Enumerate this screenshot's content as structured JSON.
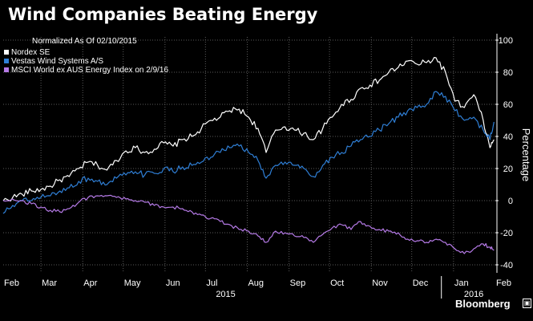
{
  "header": {
    "title": "Wind Companies Beating Energy"
  },
  "footer": {
    "brand": "Bloomberg",
    "brand_mark": "▣"
  },
  "chart_data": {
    "type": "line",
    "title": "Wind Companies Beating Energy",
    "subtitle": "Normalized As Of 02/10/2015",
    "xlabel": "",
    "ylabel": "Percentage",
    "ylim": [
      -45,
      102
    ],
    "yticks": [
      -40,
      -20,
      0,
      20,
      40,
      60,
      80,
      100
    ],
    "xlim": [
      "2015-02-10",
      "2016-02-10"
    ],
    "xticks": [
      {
        "date": "2015-02-10",
        "label": "Feb"
      },
      {
        "date": "2015-03-10",
        "label": "Mar"
      },
      {
        "date": "2015-04-10",
        "label": "Apr"
      },
      {
        "date": "2015-05-10",
        "label": "May"
      },
      {
        "date": "2015-06-10",
        "label": "Jun"
      },
      {
        "date": "2015-07-10",
        "label": "Jul"
      },
      {
        "date": "2015-08-10",
        "label": "Aug"
      },
      {
        "date": "2015-09-10",
        "label": "Sep"
      },
      {
        "date": "2015-10-10",
        "label": "Oct"
      },
      {
        "date": "2015-11-10",
        "label": "Nov"
      },
      {
        "date": "2015-12-10",
        "label": "Dec"
      },
      {
        "date": "2016-01-10",
        "label": "Jan"
      },
      {
        "date": "2016-02-10",
        "label": "Feb"
      }
    ],
    "year_labels": [
      {
        "date": "2015-07-25",
        "label": "2015"
      },
      {
        "date": "2016-01-25",
        "label": "2016"
      }
    ],
    "grid": true,
    "legend_position": "top-left",
    "colors": {
      "background": "#000000",
      "grid": "#5a5a5a",
      "axis_text": "#ffffff"
    },
    "series": [
      {
        "name": "Nordex SE",
        "color": "#ffffff",
        "points": [
          [
            "2015-02-10",
            0
          ],
          [
            "2015-02-17",
            2
          ],
          [
            "2015-02-24",
            4
          ],
          [
            "2015-03-03",
            6
          ],
          [
            "2015-03-10",
            7
          ],
          [
            "2015-03-17",
            9
          ],
          [
            "2015-03-24",
            13
          ],
          [
            "2015-03-31",
            15
          ],
          [
            "2015-04-07",
            20
          ],
          [
            "2015-04-14",
            24
          ],
          [
            "2015-04-21",
            22
          ],
          [
            "2015-04-28",
            19
          ],
          [
            "2015-05-05",
            25
          ],
          [
            "2015-05-12",
            31
          ],
          [
            "2015-05-19",
            33
          ],
          [
            "2015-05-26",
            30
          ],
          [
            "2015-06-02",
            32
          ],
          [
            "2015-06-09",
            36
          ],
          [
            "2015-06-16",
            34
          ],
          [
            "2015-06-23",
            38
          ],
          [
            "2015-06-30",
            40
          ],
          [
            "2015-07-07",
            45
          ],
          [
            "2015-07-14",
            50
          ],
          [
            "2015-07-21",
            52
          ],
          [
            "2015-07-28",
            56
          ],
          [
            "2015-08-04",
            57
          ],
          [
            "2015-08-11",
            52
          ],
          [
            "2015-08-18",
            45
          ],
          [
            "2015-08-24",
            30
          ],
          [
            "2015-08-31",
            44
          ],
          [
            "2015-09-07",
            46
          ],
          [
            "2015-09-14",
            44
          ],
          [
            "2015-09-21",
            42
          ],
          [
            "2015-09-28",
            38
          ],
          [
            "2015-10-05",
            45
          ],
          [
            "2015-10-12",
            52
          ],
          [
            "2015-10-19",
            60
          ],
          [
            "2015-10-26",
            63
          ],
          [
            "2015-11-02",
            70
          ],
          [
            "2015-11-09",
            72
          ],
          [
            "2015-11-16",
            75
          ],
          [
            "2015-11-23",
            80
          ],
          [
            "2015-11-30",
            83
          ],
          [
            "2015-12-07",
            87
          ],
          [
            "2015-12-14",
            85
          ],
          [
            "2015-12-21",
            86
          ],
          [
            "2015-12-28",
            89
          ],
          [
            "2016-01-04",
            80
          ],
          [
            "2016-01-11",
            62
          ],
          [
            "2016-01-18",
            58
          ],
          [
            "2016-01-25",
            66
          ],
          [
            "2016-02-01",
            50
          ],
          [
            "2016-02-06",
            33
          ],
          [
            "2016-02-09",
            38
          ]
        ]
      },
      {
        "name": "Vestas Wind Systems A/S",
        "color": "#2f7fd6",
        "points": [
          [
            "2015-02-10",
            -8
          ],
          [
            "2015-02-17",
            -3
          ],
          [
            "2015-02-24",
            0
          ],
          [
            "2015-03-03",
            0
          ],
          [
            "2015-03-10",
            2
          ],
          [
            "2015-03-17",
            3
          ],
          [
            "2015-03-24",
            6
          ],
          [
            "2015-03-31",
            8
          ],
          [
            "2015-04-07",
            12
          ],
          [
            "2015-04-14",
            14
          ],
          [
            "2015-04-21",
            12
          ],
          [
            "2015-04-28",
            10
          ],
          [
            "2015-05-05",
            14
          ],
          [
            "2015-05-12",
            16
          ],
          [
            "2015-05-19",
            18
          ],
          [
            "2015-05-26",
            16
          ],
          [
            "2015-06-02",
            17
          ],
          [
            "2015-06-09",
            20
          ],
          [
            "2015-06-16",
            18
          ],
          [
            "2015-06-23",
            21
          ],
          [
            "2015-06-30",
            22
          ],
          [
            "2015-07-07",
            24
          ],
          [
            "2015-07-14",
            27
          ],
          [
            "2015-07-21",
            30
          ],
          [
            "2015-07-28",
            33
          ],
          [
            "2015-08-04",
            34
          ],
          [
            "2015-08-11",
            30
          ],
          [
            "2015-08-18",
            25
          ],
          [
            "2015-08-24",
            14
          ],
          [
            "2015-08-31",
            22
          ],
          [
            "2015-09-07",
            24
          ],
          [
            "2015-09-14",
            22
          ],
          [
            "2015-09-21",
            20
          ],
          [
            "2015-09-28",
            15
          ],
          [
            "2015-10-05",
            22
          ],
          [
            "2015-10-12",
            27
          ],
          [
            "2015-10-19",
            30
          ],
          [
            "2015-10-26",
            34
          ],
          [
            "2015-11-02",
            38
          ],
          [
            "2015-11-09",
            40
          ],
          [
            "2015-11-16",
            44
          ],
          [
            "2015-11-23",
            48
          ],
          [
            "2015-11-30",
            52
          ],
          [
            "2015-12-07",
            56
          ],
          [
            "2015-12-14",
            58
          ],
          [
            "2015-12-21",
            60
          ],
          [
            "2015-12-28",
            68
          ],
          [
            "2016-01-04",
            65
          ],
          [
            "2016-01-11",
            56
          ],
          [
            "2016-01-18",
            50
          ],
          [
            "2016-01-25",
            52
          ],
          [
            "2016-02-01",
            44
          ],
          [
            "2016-02-06",
            38
          ],
          [
            "2016-02-09",
            49
          ]
        ]
      },
      {
        "name": "MSCI World ex AUS Energy Index  on 2/9/16",
        "color": "#b57ae6",
        "points": [
          [
            "2015-02-10",
            0
          ],
          [
            "2015-02-17",
            1
          ],
          [
            "2015-02-24",
            0
          ],
          [
            "2015-03-03",
            -2
          ],
          [
            "2015-03-10",
            -4
          ],
          [
            "2015-03-17",
            -6
          ],
          [
            "2015-03-24",
            -7
          ],
          [
            "2015-03-31",
            -5
          ],
          [
            "2015-04-07",
            -1
          ],
          [
            "2015-04-14",
            2
          ],
          [
            "2015-04-21",
            3
          ],
          [
            "2015-04-28",
            3
          ],
          [
            "2015-05-05",
            2
          ],
          [
            "2015-05-12",
            1
          ],
          [
            "2015-05-19",
            0
          ],
          [
            "2015-05-26",
            -1
          ],
          [
            "2015-06-02",
            -3
          ],
          [
            "2015-06-09",
            -4
          ],
          [
            "2015-06-16",
            -4
          ],
          [
            "2015-06-23",
            -5
          ],
          [
            "2015-06-30",
            -7
          ],
          [
            "2015-07-07",
            -9
          ],
          [
            "2015-07-14",
            -11
          ],
          [
            "2015-07-21",
            -13
          ],
          [
            "2015-07-28",
            -15
          ],
          [
            "2015-08-04",
            -18
          ],
          [
            "2015-08-11",
            -19
          ],
          [
            "2015-08-18",
            -22
          ],
          [
            "2015-08-24",
            -26
          ],
          [
            "2015-08-31",
            -19
          ],
          [
            "2015-09-07",
            -20
          ],
          [
            "2015-09-14",
            -22
          ],
          [
            "2015-09-21",
            -23
          ],
          [
            "2015-09-28",
            -26
          ],
          [
            "2015-10-05",
            -21
          ],
          [
            "2015-10-12",
            -17
          ],
          [
            "2015-10-19",
            -15
          ],
          [
            "2015-10-26",
            -18
          ],
          [
            "2015-11-02",
            -13
          ],
          [
            "2015-11-09",
            -16
          ],
          [
            "2015-11-16",
            -18
          ],
          [
            "2015-11-23",
            -19
          ],
          [
            "2015-11-30",
            -20
          ],
          [
            "2015-12-07",
            -24
          ],
          [
            "2015-12-14",
            -25
          ],
          [
            "2015-12-21",
            -26
          ],
          [
            "2015-12-28",
            -24
          ],
          [
            "2016-01-04",
            -26
          ],
          [
            "2016-01-11",
            -30
          ],
          [
            "2016-01-18",
            -33
          ],
          [
            "2016-01-25",
            -30
          ],
          [
            "2016-02-01",
            -27
          ],
          [
            "2016-02-06",
            -29
          ],
          [
            "2016-02-09",
            -31
          ]
        ]
      }
    ]
  }
}
